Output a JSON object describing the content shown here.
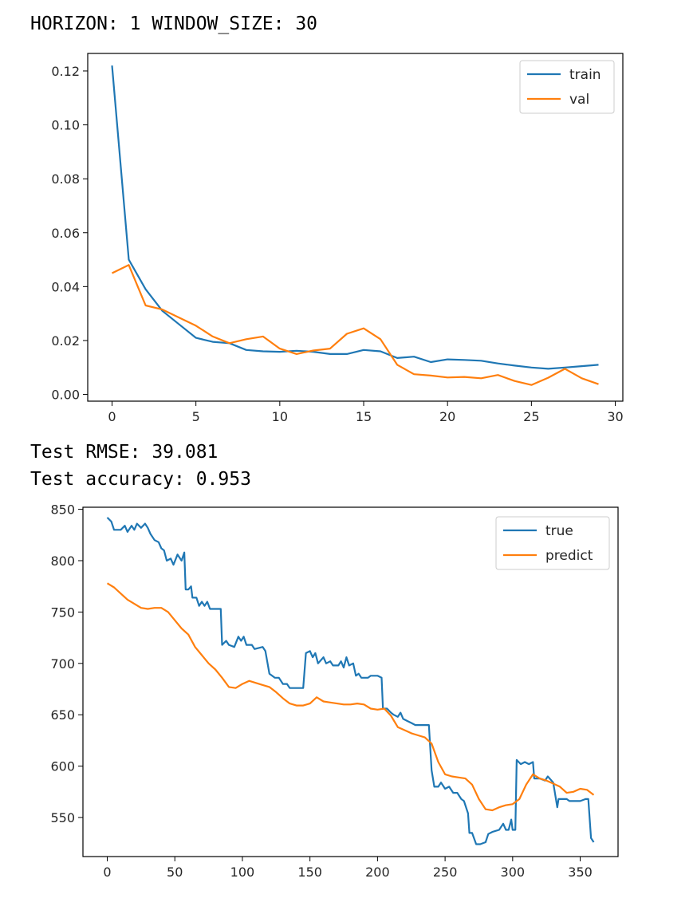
{
  "outputs": {
    "header": "HORIZON: 1 WINDOW_SIZE: 30",
    "rmse": "Test RMSE: 39.081",
    "accuracy": "Test accuracy: 0.953"
  },
  "chart_data": [
    {
      "type": "line",
      "title": "",
      "xlabel": "",
      "ylabel": "",
      "xlim": [
        -1.45,
        30.45
      ],
      "ylim": [
        -0.0025,
        0.1265
      ],
      "x_ticks": [
        0,
        5,
        10,
        15,
        20,
        25,
        30
      ],
      "y_ticks": [
        0.0,
        0.02,
        0.04,
        0.06,
        0.08,
        0.1,
        0.12
      ],
      "y_tick_labels": [
        "0.00",
        "0.02",
        "0.04",
        "0.06",
        "0.08",
        "0.10",
        "0.12"
      ],
      "grid": false,
      "legend": "top-right",
      "x": [
        0,
        1,
        2,
        3,
        4,
        5,
        6,
        7,
        8,
        9,
        10,
        11,
        12,
        13,
        14,
        15,
        16,
        17,
        18,
        19,
        20,
        21,
        22,
        23,
        24,
        25,
        26,
        27,
        28,
        29
      ],
      "series": [
        {
          "name": "train",
          "color": "#1f77b4",
          "values": [
            0.122,
            0.05,
            0.039,
            0.031,
            0.026,
            0.021,
            0.0195,
            0.019,
            0.0165,
            0.016,
            0.0158,
            0.0162,
            0.0158,
            0.015,
            0.015,
            0.0165,
            0.016,
            0.0135,
            0.014,
            0.012,
            0.013,
            0.0128,
            0.0125,
            0.0115,
            0.0107,
            0.01,
            0.0095,
            0.01,
            0.0105,
            0.011
          ]
        },
        {
          "name": "val",
          "color": "#ff7f0e",
          "values": [
            0.045,
            0.048,
            0.033,
            0.0315,
            0.0285,
            0.0255,
            0.0215,
            0.019,
            0.0205,
            0.0215,
            0.017,
            0.015,
            0.0163,
            0.017,
            0.0225,
            0.0245,
            0.0205,
            0.011,
            0.0075,
            0.007,
            0.0063,
            0.0065,
            0.006,
            0.0072,
            0.005,
            0.0035,
            0.0062,
            0.0095,
            0.006,
            0.0038
          ]
        }
      ]
    },
    {
      "type": "line",
      "title": "",
      "xlabel": "",
      "ylabel": "",
      "xlim": [
        -18,
        378
      ],
      "ylim": [
        512,
        852
      ],
      "x_ticks": [
        0,
        50,
        100,
        150,
        200,
        250,
        300,
        350
      ],
      "y_ticks": [
        550,
        600,
        650,
        700,
        750,
        800,
        850
      ],
      "grid": false,
      "legend": "top-right",
      "series": [
        {
          "name": "true",
          "color": "#1f77b4",
          "points": [
            [
              0,
              842
            ],
            [
              3,
              838
            ],
            [
              5,
              830
            ],
            [
              10,
              830
            ],
            [
              13,
              834
            ],
            [
              15,
              828
            ],
            [
              18,
              834
            ],
            [
              20,
              830
            ],
            [
              22,
              836
            ],
            [
              25,
              832
            ],
            [
              28,
              836
            ],
            [
              30,
              832
            ],
            [
              32,
              826
            ],
            [
              35,
              820
            ],
            [
              38,
              818
            ],
            [
              40,
              812
            ],
            [
              42,
              810
            ],
            [
              44,
              800
            ],
            [
              47,
              802
            ],
            [
              49,
              796
            ],
            [
              52,
              806
            ],
            [
              55,
              800
            ],
            [
              57,
              808
            ],
            [
              58,
              772
            ],
            [
              60,
              772
            ],
            [
              62,
              775
            ],
            [
              63,
              764
            ],
            [
              66,
              764
            ],
            [
              68,
              756
            ],
            [
              70,
              760
            ],
            [
              72,
              756
            ],
            [
              74,
              760
            ],
            [
              76,
              753
            ],
            [
              84,
              753
            ],
            [
              85,
              718
            ],
            [
              88,
              722
            ],
            [
              90,
              718
            ],
            [
              94,
              716
            ],
            [
              97,
              726
            ],
            [
              99,
              722
            ],
            [
              101,
              726
            ],
            [
              103,
              718
            ],
            [
              107,
              718
            ],
            [
              109,
              714
            ],
            [
              115,
              716
            ],
            [
              117,
              712
            ],
            [
              120,
              690
            ],
            [
              124,
              686
            ],
            [
              127,
              686
            ],
            [
              130,
              680
            ],
            [
              133,
              680
            ],
            [
              135,
              676
            ],
            [
              145,
              676
            ],
            [
              147,
              710
            ],
            [
              150,
              712
            ],
            [
              152,
              706
            ],
            [
              154,
              710
            ],
            [
              156,
              700
            ],
            [
              160,
              706
            ],
            [
              162,
              700
            ],
            [
              165,
              702
            ],
            [
              167,
              698
            ],
            [
              171,
              698
            ],
            [
              173,
              702
            ],
            [
              175,
              696
            ],
            [
              177,
              706
            ],
            [
              179,
              698
            ],
            [
              182,
              700
            ],
            [
              184,
              688
            ],
            [
              186,
              690
            ],
            [
              188,
              686
            ],
            [
              193,
              686
            ],
            [
              195,
              688
            ],
            [
              200,
              688
            ],
            [
              203,
              686
            ],
            [
              204,
              656
            ],
            [
              207,
              656
            ],
            [
              210,
              652
            ],
            [
              212,
              650
            ],
            [
              215,
              648
            ],
            [
              217,
              652
            ],
            [
              219,
              646
            ],
            [
              222,
              644
            ],
            [
              225,
              642
            ],
            [
              228,
              640
            ],
            [
              235,
              640
            ],
            [
              238,
              640
            ],
            [
              240,
              596
            ],
            [
              242,
              580
            ],
            [
              245,
              580
            ],
            [
              247,
              584
            ],
            [
              250,
              578
            ],
            [
              253,
              580
            ],
            [
              256,
              574
            ],
            [
              259,
              574
            ],
            [
              262,
              568
            ],
            [
              264,
              566
            ],
            [
              267,
              554
            ],
            [
              268,
              535
            ],
            [
              270,
              535
            ],
            [
              273,
              524
            ],
            [
              276,
              524
            ],
            [
              280,
              526
            ],
            [
              282,
              534
            ],
            [
              285,
              536
            ],
            [
              290,
              538
            ],
            [
              293,
              544
            ],
            [
              295,
              538
            ],
            [
              297,
              538
            ],
            [
              299,
              548
            ],
            [
              300,
              538
            ],
            [
              302,
              538
            ],
            [
              303,
              606
            ],
            [
              306,
              602
            ],
            [
              309,
              604
            ],
            [
              312,
              602
            ],
            [
              315,
              604
            ],
            [
              316,
              588
            ],
            [
              320,
              588
            ],
            [
              324,
              586
            ],
            [
              326,
              590
            ],
            [
              330,
              584
            ],
            [
              333,
              560
            ],
            [
              334,
              568
            ],
            [
              340,
              568
            ],
            [
              342,
              566
            ],
            [
              350,
              566
            ],
            [
              354,
              568
            ],
            [
              356,
              568
            ],
            [
              358,
              530
            ],
            [
              360,
              526
            ]
          ]
        },
        {
          "name": "predict",
          "color": "#ff7f0e",
          "points": [
            [
              0,
              778
            ],
            [
              5,
              774
            ],
            [
              10,
              768
            ],
            [
              15,
              762
            ],
            [
              20,
              758
            ],
            [
              25,
              754
            ],
            [
              30,
              753
            ],
            [
              35,
              754
            ],
            [
              40,
              754
            ],
            [
              45,
              750
            ],
            [
              50,
              742
            ],
            [
              55,
              734
            ],
            [
              60,
              728
            ],
            [
              65,
              716
            ],
            [
              70,
              708
            ],
            [
              75,
              700
            ],
            [
              80,
              694
            ],
            [
              85,
              686
            ],
            [
              90,
              677
            ],
            [
              95,
              676
            ],
            [
              100,
              680
            ],
            [
              105,
              683
            ],
            [
              110,
              681
            ],
            [
              115,
              679
            ],
            [
              120,
              677
            ],
            [
              125,
              672
            ],
            [
              130,
              666
            ],
            [
              135,
              661
            ],
            [
              140,
              659
            ],
            [
              145,
              659
            ],
            [
              150,
              661
            ],
            [
              155,
              667
            ],
            [
              160,
              663
            ],
            [
              165,
              662
            ],
            [
              170,
              661
            ],
            [
              175,
              660
            ],
            [
              180,
              660
            ],
            [
              185,
              661
            ],
            [
              190,
              660
            ],
            [
              195,
              656
            ],
            [
              200,
              655
            ],
            [
              205,
              656
            ],
            [
              210,
              649
            ],
            [
              215,
              638
            ],
            [
              220,
              635
            ],
            [
              225,
              632
            ],
            [
              230,
              630
            ],
            [
              235,
              628
            ],
            [
              240,
              622
            ],
            [
              245,
              604
            ],
            [
              250,
              592
            ],
            [
              255,
              590
            ],
            [
              260,
              589
            ],
            [
              265,
              588
            ],
            [
              270,
              582
            ],
            [
              275,
              568
            ],
            [
              280,
              558
            ],
            [
              285,
              557
            ],
            [
              290,
              560
            ],
            [
              295,
              562
            ],
            [
              300,
              563
            ],
            [
              305,
              568
            ],
            [
              310,
              582
            ],
            [
              315,
              592
            ],
            [
              320,
              588
            ],
            [
              325,
              586
            ],
            [
              330,
              583
            ],
            [
              335,
              580
            ],
            [
              340,
              574
            ],
            [
              345,
              575
            ],
            [
              350,
              578
            ],
            [
              355,
              577
            ],
            [
              360,
              572
            ]
          ]
        }
      ]
    }
  ]
}
